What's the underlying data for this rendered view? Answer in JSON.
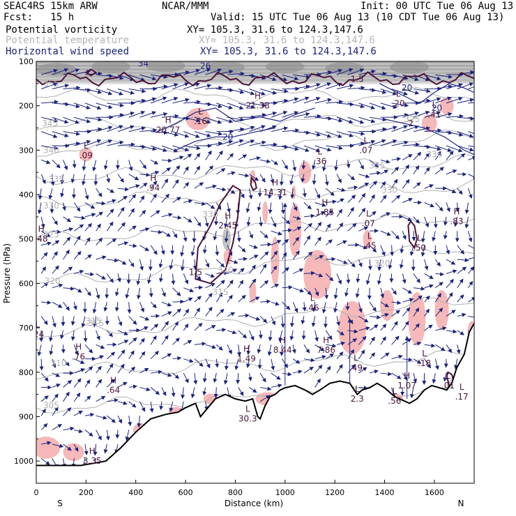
{
  "header": {
    "model": "SEAC4RS 15km ARW",
    "org": "NCAR/MMM",
    "init": "Init: 00 UTC Tue 06 Aug 13",
    "fcst": "Fcst:   15 h",
    "valid": "Valid: 15 UTC Tue 06 Aug 13 (10 CDT Tue 06 Aug 13)",
    "fields": [
      {
        "name": "Potential vorticity",
        "xy": "XY= 105.3, 31.6 to 124.3,147.6"
      },
      {
        "name": "Potential temperature",
        "xy": "XY= 105.3, 31.6 to 124.3,147.6"
      },
      {
        "name": "Horizontal wind speed",
        "xy": "XY= 105.3, 31.6 to 124.3,147.6"
      }
    ]
  },
  "colors": {
    "pv_contour": "#4a1438",
    "theta_contour": "#b0b0b0",
    "wind": "#1a237e",
    "shading": "#f6b8b8",
    "stratosphere_gray": "#8c8c8c"
  },
  "chart_data": {
    "type": "cross-section",
    "xlabel": "Distance (km)",
    "ylabel": "Pressure (hPa)",
    "xlim": [
      0,
      1760
    ],
    "ylim": [
      1050,
      100
    ],
    "x_ticks": [
      "0",
      "200",
      "400",
      "600",
      "800",
      "1000",
      "1200",
      "1400",
      "1600"
    ],
    "x_tick_values": [
      0,
      200,
      400,
      600,
      800,
      1000,
      1200,
      1400,
      1600
    ],
    "y_ticks": [
      "100",
      "200",
      "300",
      "400",
      "500",
      "600",
      "700",
      "800",
      "900",
      "1000"
    ],
    "y_tick_values": [
      100,
      200,
      300,
      400,
      500,
      600,
      700,
      800,
      900,
      1000
    ],
    "end_labels": {
      "left": "S",
      "right": "N"
    },
    "terrain": [
      [
        0,
        1010
      ],
      [
        60,
        1010
      ],
      [
        180,
        1010
      ],
      [
        280,
        1000
      ],
      [
        340,
        970
      ],
      [
        400,
        935
      ],
      [
        460,
        905
      ],
      [
        520,
        895
      ],
      [
        570,
        890
      ],
      [
        600,
        880
      ],
      [
        640,
        870
      ],
      [
        660,
        900
      ],
      [
        690,
        880
      ],
      [
        720,
        860
      ],
      [
        760,
        850
      ],
      [
        800,
        860
      ],
      [
        840,
        865
      ],
      [
        870,
        860
      ],
      [
        890,
        900
      ],
      [
        900,
        905
      ],
      [
        920,
        875
      ],
      [
        940,
        855
      ],
      [
        960,
        850
      ],
      [
        980,
        840
      ],
      [
        1000,
        835
      ],
      [
        1040,
        830
      ],
      [
        1080,
        840
      ],
      [
        1110,
        850
      ],
      [
        1140,
        840
      ],
      [
        1180,
        825
      ],
      [
        1220,
        820
      ],
      [
        1260,
        825
      ],
      [
        1290,
        850
      ],
      [
        1310,
        840
      ],
      [
        1340,
        835
      ],
      [
        1370,
        825
      ],
      [
        1400,
        835
      ],
      [
        1440,
        855
      ],
      [
        1480,
        865
      ],
      [
        1500,
        870
      ],
      [
        1530,
        860
      ],
      [
        1560,
        840
      ],
      [
        1590,
        830
      ],
      [
        1620,
        835
      ],
      [
        1650,
        840
      ],
      [
        1670,
        825
      ],
      [
        1690,
        790
      ],
      [
        1720,
        760
      ],
      [
        1740,
        710
      ],
      [
        1760,
        690
      ]
    ],
    "theta_isentropes": [
      {
        "label": "305",
        "p_left": 880,
        "p_right": 840
      },
      {
        "label": "310",
        "p_left": 800,
        "p_right": 765
      },
      {
        "label": "315",
        "p_left": 720,
        "p_right": 640
      },
      {
        "label": "320",
        "p_left": 600,
        "p_right": 520
      },
      {
        "label": "325",
        "p_left": 500,
        "p_right": 450
      },
      {
        "label": "330",
        "p_left": 420,
        "p_right": 380
      },
      {
        "label": "335",
        "p_left": 365,
        "p_right": 325
      },
      {
        "label": "340",
        "p_left": 300,
        "p_right": 270
      },
      {
        "label": "345",
        "p_left": 245,
        "p_right": 230
      },
      {
        "label": "350",
        "p_left": 180,
        "p_right": 175
      }
    ],
    "theta_labels": [
      {
        "text": "355",
        "x": 60,
        "p": 150
      },
      {
        "text": "345",
        "x": 55,
        "p": 240
      },
      {
        "text": "340",
        "x": 60,
        "p": 300
      },
      {
        "text": "335",
        "x": 80,
        "p": 365
      },
      {
        "text": "330",
        "x": 60,
        "p": 425
      },
      {
        "text": "325",
        "x": 60,
        "p": 490
      },
      {
        "text": "320",
        "x": 65,
        "p": 595
      },
      {
        "text": "315",
        "x": 230,
        "p": 685
      },
      {
        "text": "315",
        "x": 240,
        "p": 690
      },
      {
        "text": "310",
        "x": 90,
        "p": 780
      },
      {
        "text": "305",
        "x": 60,
        "p": 875
      },
      {
        "text": "330",
        "x": 700,
        "p": 445
      },
      {
        "text": "320",
        "x": 760,
        "p": 570
      },
      {
        "text": "315",
        "x": 740,
        "p": 620
      },
      {
        "text": "330",
        "x": 1420,
        "p": 390
      },
      {
        "text": "335",
        "x": 1370,
        "p": 335
      },
      {
        "text": "320",
        "x": 1390,
        "p": 555
      },
      {
        "text": "325",
        "x": 1510,
        "p": 230
      },
      {
        "text": "336",
        "x": 1600,
        "p": 310
      }
    ],
    "pv_labels": [
      {
        "text": "1.5",
        "x": 640,
        "p": 575
      },
      {
        "text": "1.5",
        "x": 1290,
        "p": 140
      },
      {
        "text": "2",
        "x": 1505,
        "p": 240
      }
    ],
    "extrema": [
      {
        "type": "H",
        "value": ".48",
        "x": 20,
        "p": 500
      },
      {
        "type": "H",
        "value": ".94",
        "x": 470,
        "p": 385
      },
      {
        "type": "H",
        "value": "2.45",
        "x": 770,
        "p": 470
      },
      {
        "type": "H",
        "value": "14.31",
        "x": 960,
        "p": 395
      },
      {
        "type": "H",
        "value": "1.85",
        "x": 1160,
        "p": 440
      },
      {
        "type": "H",
        "value": ".83",
        "x": 1690,
        "p": 460
      },
      {
        "type": "H",
        "value": ".76",
        "x": 170,
        "p": 765
      },
      {
        "type": "H",
        "value": "1.49",
        "x": 845,
        "p": 770
      },
      {
        "type": "H",
        "value": "8.44",
        "x": 990,
        "p": 750
      },
      {
        "type": "H",
        "value": "7.86",
        "x": 1165,
        "p": 750
      },
      {
        "type": "H",
        "value": ".64",
        "x": 310,
        "p": 840
      },
      {
        "type": "H",
        "value": "3.35",
        "x": 225,
        "p": 1000
      },
      {
        "type": "H",
        "value": "1.07",
        "x": 1490,
        "p": 830
      },
      {
        "type": "H",
        "value": "20.77",
        "x": 530,
        "p": 255
      },
      {
        "type": "H",
        "value": "21.38",
        "x": 890,
        "p": 200
      },
      {
        "type": "L",
        "value": ".36",
        "x": 1140,
        "p": 325
      },
      {
        "type": "L",
        "value": ".07",
        "x": 1325,
        "p": 300
      },
      {
        "type": "L",
        "value": ".07",
        "x": 1335,
        "p": 465
      },
      {
        "type": "L",
        "value": ".45",
        "x": 1340,
        "p": 515
      },
      {
        "type": "L",
        "value": ".50",
        "x": 1540,
        "p": 520
      },
      {
        "type": "L",
        "value": ".46",
        "x": 1110,
        "p": 655
      },
      {
        "type": "L",
        "value": ".49",
        "x": 1285,
        "p": 790
      },
      {
        "type": "L",
        "value": ".18",
        "x": 1560,
        "p": 780
      },
      {
        "type": "L",
        "value": ".01",
        "x": 1655,
        "p": 830
      },
      {
        "type": "L",
        "value": "2.3",
        "x": 1290,
        "p": 860
      },
      {
        "type": "L",
        "value": ".56",
        "x": 1440,
        "p": 865
      },
      {
        "type": "L",
        "value": "30.3",
        "x": 850,
        "p": 905
      },
      {
        "type": "L",
        "value": ".09",
        "x": 200,
        "p": 312
      },
      {
        "type": "L",
        "value": ".16",
        "x": 660,
        "p": 235
      },
      {
        "type": "L",
        "value": ".41",
        "x": 1600,
        "p": 220
      },
      {
        "type": "L",
        "value": ".20",
        "x": 1455,
        "p": 195
      },
      {
        "type": "L",
        "value": ".24",
        "x": 5,
        "p": 715
      },
      {
        "type": "L",
        "value": ".17",
        "x": 1710,
        "p": 855
      }
    ],
    "wind_labels": [
      {
        "text": "20",
        "x": 1490,
        "p": 160
      },
      {
        "text": "20",
        "x": 770,
        "p": 270
      },
      {
        "text": "20",
        "x": 1610,
        "p": 205
      },
      {
        "text": "34",
        "x": 430,
        "p": 105
      },
      {
        "text": "26",
        "x": 680,
        "p": 110
      }
    ]
  }
}
